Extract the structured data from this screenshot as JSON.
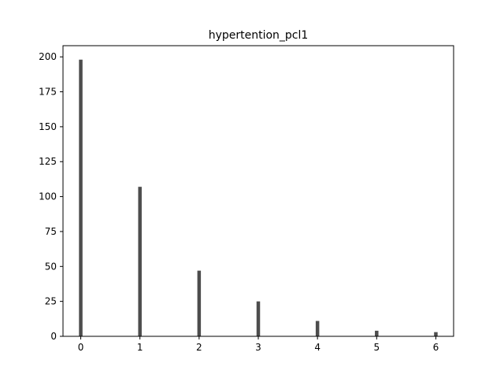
{
  "chart_data": {
    "type": "bar",
    "title": "hypertention_pcl1",
    "xlabel": "",
    "ylabel": "",
    "x": [
      0,
      1,
      2,
      3,
      4,
      5,
      6
    ],
    "values": [
      198,
      107,
      47,
      25,
      11,
      4,
      3
    ],
    "xlim": [
      -0.3,
      6.3
    ],
    "ylim": [
      0,
      208
    ],
    "xticks": [
      "0",
      "1",
      "2",
      "3",
      "4",
      "5",
      "6"
    ],
    "yticks": [
      "0",
      "25",
      "50",
      "75",
      "100",
      "125",
      "150",
      "175",
      "200"
    ],
    "bar_color": "#4d4d4d",
    "grid": false,
    "legend": "none"
  }
}
